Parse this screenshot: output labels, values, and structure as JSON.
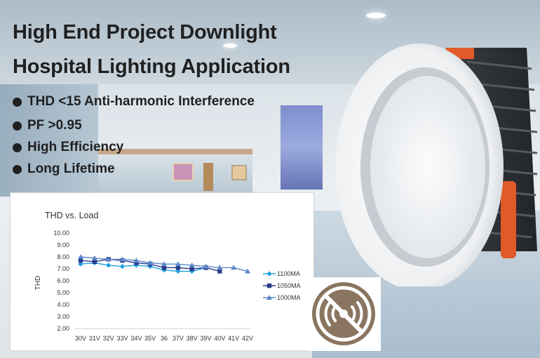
{
  "headline": {
    "line1": "High End Project Downlight",
    "line2": "Hospital Lighting Application"
  },
  "bullets": [
    "THD <15 Anti-harmonic Interference",
    "PF >0.95",
    "High Efficiency",
    "Long Lifetime"
  ],
  "colors": {
    "text": "#1f2021",
    "series_1100": "#1ea0e0",
    "series_1050": "#2b3c8f",
    "series_1000": "#5d88c7",
    "badge": "#8a7560"
  },
  "icons": {
    "bullet": "filled-circle-icon",
    "badge": "no-flicker-icon"
  },
  "chart_data": {
    "type": "line",
    "title": "THD vs. Load",
    "xlabel": "",
    "ylabel": "THD",
    "categories": [
      "30V",
      "31V",
      "32V",
      "33V",
      "34V",
      "35V",
      "36",
      "37V",
      "38V",
      "39V",
      "40V",
      "41V",
      "42V"
    ],
    "yticks": [
      "10.00",
      "9.00",
      "8.00",
      "7.00",
      "6.00",
      "5.00",
      "4.00",
      "3.00",
      "2.00"
    ],
    "ylim": [
      2,
      10
    ],
    "grid": false,
    "legend": "right",
    "series": [
      {
        "name": "1100MA",
        "marker": "diamond",
        "values": [
          7.4,
          7.5,
          7.3,
          7.2,
          7.3,
          7.2,
          6.9,
          6.8,
          6.8,
          7.1,
          null,
          null,
          null
        ]
      },
      {
        "name": "1050MA",
        "marker": "square",
        "values": [
          7.7,
          7.6,
          7.8,
          7.7,
          7.5,
          7.4,
          7.1,
          7.1,
          7.0,
          7.1,
          6.8,
          null,
          null
        ]
      },
      {
        "name": "1000MA",
        "marker": "triangle",
        "values": [
          8.0,
          7.9,
          7.8,
          7.8,
          7.7,
          7.5,
          7.4,
          7.4,
          7.3,
          7.2,
          7.1,
          7.1,
          6.8
        ]
      }
    ]
  }
}
